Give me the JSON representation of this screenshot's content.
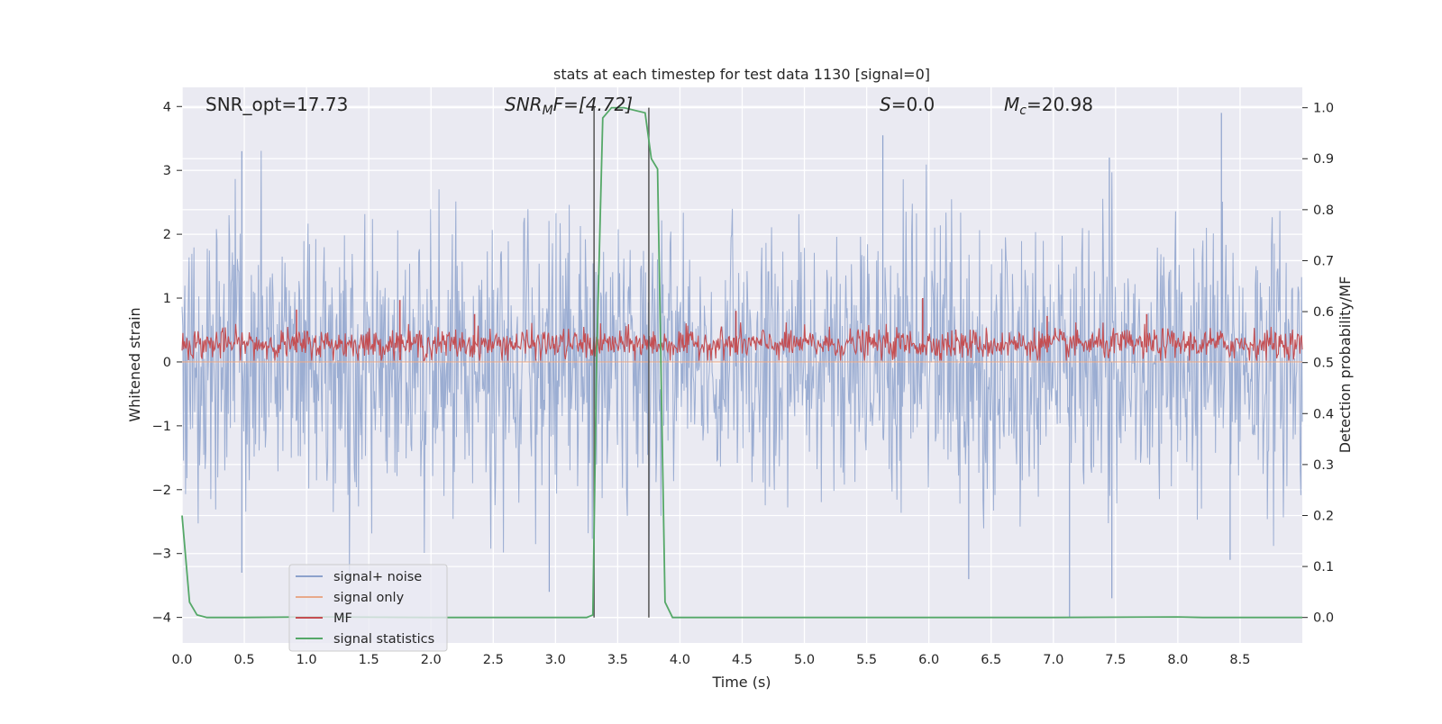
{
  "chart_data": {
    "type": "line",
    "title": "stats at each timestep for test data 1130 [signal=0]",
    "xlabel": "Time (s)",
    "ylabel": "Whitened strain",
    "y2label": "Detection probability/MF",
    "xlim": [
      0.0,
      9.0
    ],
    "ylim": [
      -4.4,
      4.3
    ],
    "y2lim": [
      -0.05,
      1.04
    ],
    "xticks": [
      0.0,
      0.5,
      1.0,
      1.5,
      2.0,
      2.5,
      3.0,
      3.5,
      4.0,
      4.5,
      5.0,
      5.5,
      6.0,
      6.5,
      7.0,
      7.5,
      8.0,
      8.5
    ],
    "xtick_labels": [
      "0.0",
      "0.5",
      "1.0",
      "1.5",
      "2.0",
      "2.5",
      "3.0",
      "3.5",
      "4.0",
      "4.5",
      "5.0",
      "5.5",
      "6.0",
      "6.5",
      "7.0",
      "7.5",
      "8.0",
      "8.5"
    ],
    "yticks": [
      4,
      3,
      2,
      1,
      0,
      -1,
      -2,
      -3,
      -4
    ],
    "ytick_labels": [
      "4",
      "3",
      "2",
      "1",
      "0",
      "−1",
      "−2",
      "−3",
      "−4"
    ],
    "y2ticks": [
      1.0,
      0.9,
      0.8,
      0.7,
      0.6,
      0.5,
      0.4,
      0.3,
      0.2,
      0.1,
      0.0
    ],
    "y2tick_labels": [
      "1.0",
      "0.9",
      "0.8",
      "0.7",
      "0.6",
      "0.5",
      "0.4",
      "0.3",
      "0.2",
      "0.1",
      "0.0"
    ],
    "grid": true,
    "legend_position": "lower-left",
    "annotations": {
      "snr_opt": "SNR_opt=17.73",
      "snr_mf_main": "SNR",
      "snr_mf_sub": "M",
      "snr_mf_rest": "F=[4.72]",
      "s_main": "S",
      "s_rest": "=0.0",
      "mc_main": "M",
      "mc_sub": "c",
      "mc_rest": "=20.98"
    },
    "vertical_markers": [
      {
        "x": 3.31,
        "y_range": [
          0.0,
          1.0
        ]
      },
      {
        "x": 3.75,
        "y_range": [
          0.0,
          1.0
        ]
      }
    ],
    "series": [
      {
        "name": "signal+ noise",
        "color": "#8da2cc",
        "axis": "left",
        "kind": "noise",
        "description_values": {
          "core_range": [
            -1.5,
            1.5
          ],
          "max": 3.9,
          "min": -4.0,
          "outliers": [
            [
              0.48,
              3.3
            ],
            [
              0.48,
              -3.3
            ],
            [
              2.95,
              -3.6
            ],
            [
              5.63,
              3.55
            ],
            [
              7.13,
              -4.0
            ],
            [
              7.45,
              3.2
            ],
            [
              7.47,
              -3.7
            ],
            [
              8.35,
              3.9
            ],
            [
              8.42,
              -3.1
            ],
            [
              6.32,
              -3.4
            ]
          ]
        }
      },
      {
        "name": "signal only",
        "color": "#e8a98a",
        "axis": "left",
        "kind": "flat",
        "value": 0.0
      },
      {
        "name": "MF",
        "color": "#c44e52",
        "axis": "left",
        "kind": "mf",
        "description_values": {
          "base": 0.0,
          "typical_max": 0.6,
          "peaks": [
            [
              1.75,
              0.97
            ],
            [
              0.92,
              0.82
            ],
            [
              5.95,
              1.0
            ],
            [
              2.35,
              0.75
            ],
            [
              4.45,
              0.8
            ],
            [
              6.95,
              0.72
            ],
            [
              7.75,
              0.75
            ]
          ]
        }
      },
      {
        "name": "signal statistics",
        "color": "#55a868",
        "axis": "right",
        "kind": "line",
        "x": [
          0.0,
          0.06,
          0.12,
          0.2,
          0.5,
          1.0,
          2.0,
          3.0,
          3.25,
          3.3,
          3.33,
          3.38,
          3.45,
          3.55,
          3.72,
          3.77,
          3.82,
          3.88,
          3.94,
          4.2,
          5.0,
          6.0,
          7.0,
          8.0,
          8.2,
          9.0
        ],
        "y": [
          0.2,
          0.03,
          0.005,
          0.0,
          0.0,
          0.001,
          0.0,
          0.0,
          0.0,
          0.005,
          0.5,
          0.98,
          1.0,
          1.0,
          0.99,
          0.9,
          0.88,
          0.03,
          0.0,
          0.0,
          0.0,
          0.0,
          0.0,
          0.001,
          0.0,
          0.0
        ]
      }
    ]
  }
}
